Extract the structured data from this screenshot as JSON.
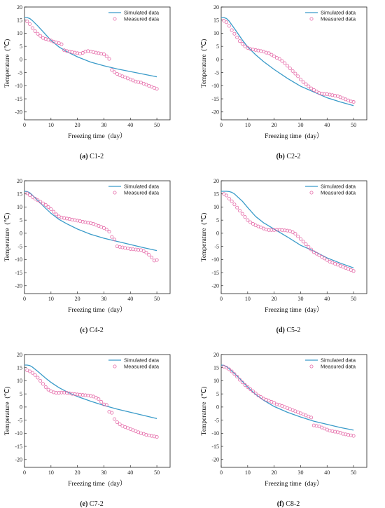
{
  "legend": {
    "simulated": "Simulated data",
    "measured": "Measured data"
  },
  "colors": {
    "simulated": "#3a9bc9",
    "measured": "#e56aa8",
    "axis": "#222222"
  },
  "chart_data": [
    {
      "type": "line",
      "caption_letter": "(a)",
      "caption_text": "C1-2",
      "xlabel": "Freezing time  (day）",
      "ylabel": "Temperature  (℃)",
      "xlim": [
        0,
        55
      ],
      "ylim": [
        -23,
        20
      ],
      "xticks": [
        0,
        10,
        20,
        30,
        40,
        50
      ],
      "yticks": [
        20,
        15,
        10,
        5,
        0,
        -5,
        -10,
        -15,
        -20
      ],
      "legend_position": "top-right",
      "series": [
        {
          "name": "Simulated data",
          "kind": "line",
          "x": [
            0,
            1,
            2,
            3,
            5,
            8,
            10,
            13,
            16,
            20,
            25,
            30,
            35,
            40,
            45,
            50
          ],
          "y": [
            16,
            16,
            15.6,
            14.8,
            12.8,
            9.5,
            7.3,
            4.8,
            3.0,
            1.0,
            -1.0,
            -2.4,
            -3.6,
            -4.6,
            -5.6,
            -6.6
          ]
        },
        {
          "name": "Measured data",
          "kind": "scatter",
          "x": [
            1,
            2,
            3,
            4,
            5,
            6,
            7,
            8,
            9,
            10,
            11,
            12,
            13,
            14,
            15,
            16,
            17,
            18,
            19,
            20,
            21,
            22,
            23,
            24,
            25,
            26,
            27,
            28,
            29,
            30,
            31,
            32,
            33,
            34,
            35,
            36,
            37,
            38,
            39,
            40,
            41,
            42,
            43,
            44,
            45,
            46,
            47,
            48,
            49,
            50
          ],
          "y": [
            14.5,
            13.5,
            12.0,
            10.8,
            9.8,
            9.0,
            8.2,
            7.8,
            7.5,
            7.2,
            6.8,
            6.5,
            6.2,
            5.8,
            3.5,
            3.2,
            3.0,
            2.8,
            2.6,
            2.4,
            2.2,
            2.5,
            3.0,
            3.2,
            3.0,
            2.8,
            2.6,
            2.4,
            2.2,
            2.0,
            1.2,
            0.2,
            -4.0,
            -4.8,
            -5.5,
            -6.0,
            -6.4,
            -6.8,
            -7.2,
            -7.6,
            -8.0,
            -8.4,
            -8.6,
            -8.8,
            -9.2,
            -9.6,
            -10.0,
            -10.4,
            -10.8,
            -11.2
          ]
        }
      ]
    },
    {
      "type": "line",
      "caption_letter": "(b)",
      "caption_text": "C2-2",
      "xlabel": "Freezing time  (day）",
      "ylabel": "Temperature  (℃)",
      "xlim": [
        0,
        55
      ],
      "ylim": [
        -23,
        20
      ],
      "xticks": [
        0,
        10,
        20,
        30,
        40,
        50
      ],
      "yticks": [
        20,
        15,
        10,
        5,
        0,
        -5,
        -10,
        -15,
        -20
      ],
      "legend_position": "top-right",
      "series": [
        {
          "name": "Simulated data",
          "kind": "line",
          "x": [
            0,
            1,
            2,
            3,
            5,
            8,
            10,
            13,
            16,
            20,
            25,
            30,
            35,
            40,
            45,
            50
          ],
          "y": [
            16,
            16,
            15.6,
            14.6,
            11.8,
            7.4,
            4.8,
            1.8,
            -0.8,
            -3.8,
            -7.2,
            -10.2,
            -12.4,
            -14.6,
            -16.2,
            -17.6
          ]
        },
        {
          "name": "Measured data",
          "kind": "scatter",
          "x": [
            1,
            2,
            3,
            4,
            5,
            6,
            7,
            8,
            9,
            10,
            11,
            12,
            13,
            14,
            15,
            16,
            17,
            18,
            19,
            20,
            21,
            22,
            23,
            24,
            25,
            26,
            27,
            28,
            29,
            30,
            31,
            32,
            33,
            34,
            35,
            36,
            37,
            38,
            39,
            40,
            41,
            42,
            43,
            44,
            45,
            46,
            47,
            48,
            49,
            50
          ],
          "y": [
            14.8,
            14.2,
            12.8,
            11.2,
            9.8,
            8.4,
            7.0,
            6.0,
            5.0,
            4.4,
            4.0,
            3.8,
            3.6,
            3.4,
            3.2,
            3.0,
            2.6,
            2.4,
            1.8,
            1.2,
            0.6,
            0.2,
            -0.6,
            -1.4,
            -2.4,
            -3.4,
            -4.4,
            -5.4,
            -6.4,
            -7.6,
            -8.6,
            -9.4,
            -10.2,
            -11.0,
            -11.6,
            -12.2,
            -12.8,
            -13.0,
            -13.2,
            -13.2,
            -13.4,
            -13.6,
            -13.8,
            -14.0,
            -14.4,
            -14.8,
            -15.2,
            -15.6,
            -16.0,
            -16.2
          ]
        }
      ]
    },
    {
      "type": "line",
      "caption_letter": "(c)",
      "caption_text": "C4-2",
      "xlabel": "Freezing time  (day）",
      "ylabel": "Temperature  (℃)",
      "xlim": [
        0,
        55
      ],
      "ylim": [
        -23,
        20
      ],
      "xticks": [
        0,
        10,
        20,
        30,
        40,
        50
      ],
      "yticks": [
        20,
        15,
        10,
        5,
        0,
        -5,
        -10,
        -15,
        -20
      ],
      "legend_position": "top-right",
      "series": [
        {
          "name": "Simulated data",
          "kind": "line",
          "x": [
            0,
            1,
            2,
            3,
            5,
            8,
            10,
            13,
            16,
            20,
            25,
            30,
            35,
            40,
            45,
            50
          ],
          "y": [
            16,
            15.9,
            15.4,
            14.5,
            12.5,
            9.5,
            7.6,
            5.3,
            3.6,
            1.6,
            -0.4,
            -1.9,
            -3.1,
            -4.3,
            -5.5,
            -6.6
          ]
        },
        {
          "name": "Measured data",
          "kind": "scatter",
          "x": [
            1,
            2,
            3,
            4,
            5,
            6,
            7,
            8,
            9,
            10,
            11,
            12,
            13,
            14,
            15,
            16,
            17,
            18,
            19,
            20,
            21,
            22,
            23,
            24,
            25,
            26,
            27,
            28,
            29,
            30,
            31,
            32,
            33,
            34,
            35,
            36,
            37,
            38,
            39,
            40,
            41,
            42,
            43,
            44,
            45,
            46,
            47,
            48,
            49,
            50
          ],
          "y": [
            15.2,
            14.5,
            13.8,
            13.2,
            12.6,
            12.0,
            11.4,
            10.8,
            10.0,
            9.2,
            8.2,
            7.2,
            6.4,
            6.0,
            5.8,
            5.6,
            5.4,
            5.2,
            5.0,
            4.8,
            4.6,
            4.4,
            4.2,
            4.0,
            3.8,
            3.6,
            3.2,
            2.8,
            2.4,
            2.0,
            1.4,
            0.6,
            -1.4,
            -2.4,
            -5.0,
            -5.2,
            -5.4,
            -5.6,
            -5.8,
            -6.0,
            -6.1,
            -6.2,
            -6.3,
            -6.4,
            -6.8,
            -7.4,
            -8.2,
            -9.2,
            -10.4,
            -10.2
          ]
        }
      ]
    },
    {
      "type": "line",
      "caption_letter": "(d)",
      "caption_text": "C5-2",
      "xlabel": "Freezing time  (day）",
      "ylabel": "Temperature  (℃)",
      "xlim": [
        0,
        55
      ],
      "ylim": [
        -23,
        20
      ],
      "xticks": [
        0,
        10,
        20,
        30,
        40,
        50
      ],
      "yticks": [
        20,
        15,
        10,
        5,
        0,
        -5,
        -10,
        -15,
        -20
      ],
      "legend_position": "top-right",
      "series": [
        {
          "name": "Simulated data",
          "kind": "line",
          "x": [
            0,
            1,
            2,
            3,
            4,
            5,
            8,
            10,
            13,
            16,
            20,
            25,
            30,
            35,
            40,
            45,
            50
          ],
          "y": [
            16,
            16,
            16,
            15.9,
            15.6,
            15.0,
            12.2,
            9.8,
            6.4,
            4.0,
            1.6,
            -1.4,
            -4.6,
            -6.8,
            -9.4,
            -11.4,
            -13.2
          ]
        },
        {
          "name": "Measured data",
          "kind": "scatter",
          "x": [
            1,
            2,
            3,
            4,
            5,
            6,
            7,
            8,
            9,
            10,
            11,
            12,
            13,
            14,
            15,
            16,
            17,
            18,
            19,
            20,
            21,
            22,
            23,
            24,
            25,
            26,
            27,
            28,
            29,
            30,
            31,
            32,
            33,
            34,
            35,
            36,
            37,
            38,
            39,
            40,
            41,
            42,
            43,
            44,
            45,
            46,
            47,
            48,
            49,
            50
          ],
          "y": [
            15.0,
            14.4,
            13.2,
            12.2,
            11.0,
            9.8,
            8.6,
            7.4,
            6.2,
            5.0,
            4.2,
            3.6,
            3.0,
            2.6,
            2.2,
            1.8,
            1.4,
            1.2,
            1.2,
            1.2,
            1.3,
            1.3,
            1.2,
            1.1,
            1.0,
            0.8,
            0.4,
            -0.2,
            -1.2,
            -2.2,
            -3.2,
            -4.2,
            -5.2,
            -6.2,
            -7.2,
            -7.8,
            -8.4,
            -9.0,
            -9.6,
            -10.2,
            -10.8,
            -11.2,
            -11.6,
            -12.0,
            -12.4,
            -12.8,
            -13.2,
            -13.6,
            -14.0,
            -14.4
          ]
        }
      ]
    },
    {
      "type": "line",
      "caption_letter": "(e)",
      "caption_text": "C7-2",
      "xlabel": "Freezing time  (day）",
      "ylabel": "Temperature  (℃)",
      "xlim": [
        0,
        55
      ],
      "ylim": [
        -23,
        20
      ],
      "xticks": [
        0,
        10,
        20,
        30,
        40,
        50
      ],
      "yticks": [
        20,
        15,
        10,
        5,
        0,
        -5,
        -10,
        -15,
        -20
      ],
      "legend_position": "top-right",
      "series": [
        {
          "name": "Simulated data",
          "kind": "line",
          "x": [
            0,
            1,
            2,
            3,
            5,
            8,
            10,
            13,
            16,
            20,
            25,
            30,
            35,
            40,
            45,
            50
          ],
          "y": [
            16,
            16,
            15.8,
            15.2,
            13.6,
            11.0,
            9.4,
            7.4,
            5.8,
            4.0,
            2.2,
            0.6,
            -0.8,
            -2.0,
            -3.2,
            -4.4
          ]
        },
        {
          "name": "Measured data",
          "kind": "scatter",
          "x": [
            1,
            2,
            3,
            4,
            5,
            6,
            7,
            8,
            9,
            10,
            11,
            12,
            13,
            14,
            15,
            16,
            17,
            18,
            19,
            20,
            21,
            22,
            23,
            24,
            25,
            26,
            27,
            28,
            29,
            30,
            31,
            32,
            33,
            34,
            35,
            36,
            37,
            38,
            39,
            40,
            41,
            42,
            43,
            44,
            45,
            46,
            47,
            48,
            49,
            50
          ],
          "y": [
            14.0,
            13.6,
            13.0,
            12.2,
            11.2,
            10.0,
            8.8,
            7.6,
            6.6,
            6.0,
            5.6,
            5.4,
            5.4,
            5.5,
            5.5,
            5.4,
            5.2,
            5.0,
            4.9,
            4.8,
            4.7,
            4.6,
            4.5,
            4.4,
            4.2,
            4.0,
            3.6,
            3.0,
            2.0,
            1.0,
            0.8,
            -1.8,
            -2.2,
            -4.6,
            -5.8,
            -6.6,
            -7.2,
            -7.6,
            -8.0,
            -8.4,
            -8.8,
            -9.2,
            -9.6,
            -10.0,
            -10.2,
            -10.6,
            -10.8,
            -11.0,
            -11.2,
            -11.4
          ]
        }
      ]
    },
    {
      "type": "line",
      "caption_letter": "(f)",
      "caption_text": "C8-2",
      "xlabel": "Freezing time  (day）",
      "ylabel": "Temperature  (℃)",
      "xlim": [
        0,
        55
      ],
      "ylim": [
        -23,
        20
      ],
      "xticks": [
        0,
        10,
        20,
        30,
        40,
        50
      ],
      "yticks": [
        20,
        15,
        10,
        5,
        0,
        -5,
        -10,
        -15,
        -20
      ],
      "legend_position": "top-right",
      "series": [
        {
          "name": "Simulated data",
          "kind": "line",
          "x": [
            0,
            1,
            2,
            3,
            5,
            8,
            10,
            13,
            16,
            20,
            25,
            30,
            35,
            40,
            45,
            50
          ],
          "y": [
            16,
            15.9,
            15.4,
            14.6,
            12.8,
            9.8,
            7.6,
            4.8,
            2.6,
            0.2,
            -2.0,
            -3.8,
            -5.4,
            -6.6,
            -7.8,
            -8.8
          ]
        },
        {
          "name": "Measured data",
          "kind": "scatter",
          "x": [
            1,
            2,
            3,
            4,
            5,
            6,
            7,
            8,
            9,
            10,
            11,
            12,
            13,
            14,
            15,
            16,
            17,
            18,
            19,
            20,
            21,
            22,
            23,
            24,
            25,
            26,
            27,
            28,
            29,
            30,
            31,
            32,
            33,
            34,
            35,
            36,
            37,
            38,
            39,
            40,
            41,
            42,
            43,
            44,
            45,
            46,
            47,
            48,
            49,
            50
          ],
          "y": [
            15.4,
            15.0,
            14.4,
            13.6,
            12.6,
            11.6,
            10.4,
            9.4,
            8.4,
            7.6,
            6.8,
            6.0,
            5.2,
            4.4,
            3.8,
            3.2,
            2.8,
            2.4,
            2.0,
            1.6,
            1.0,
            0.8,
            0.4,
            0.0,
            -0.4,
            -0.8,
            -1.2,
            -1.6,
            -2.0,
            -2.4,
            -2.8,
            -3.2,
            -3.6,
            -4.0,
            -7.0,
            -7.2,
            -7.4,
            -7.8,
            -8.2,
            -8.6,
            -9.0,
            -9.2,
            -9.4,
            -9.6,
            -9.8,
            -10.2,
            -10.4,
            -10.6,
            -10.8,
            -11.0
          ]
        }
      ]
    }
  ]
}
